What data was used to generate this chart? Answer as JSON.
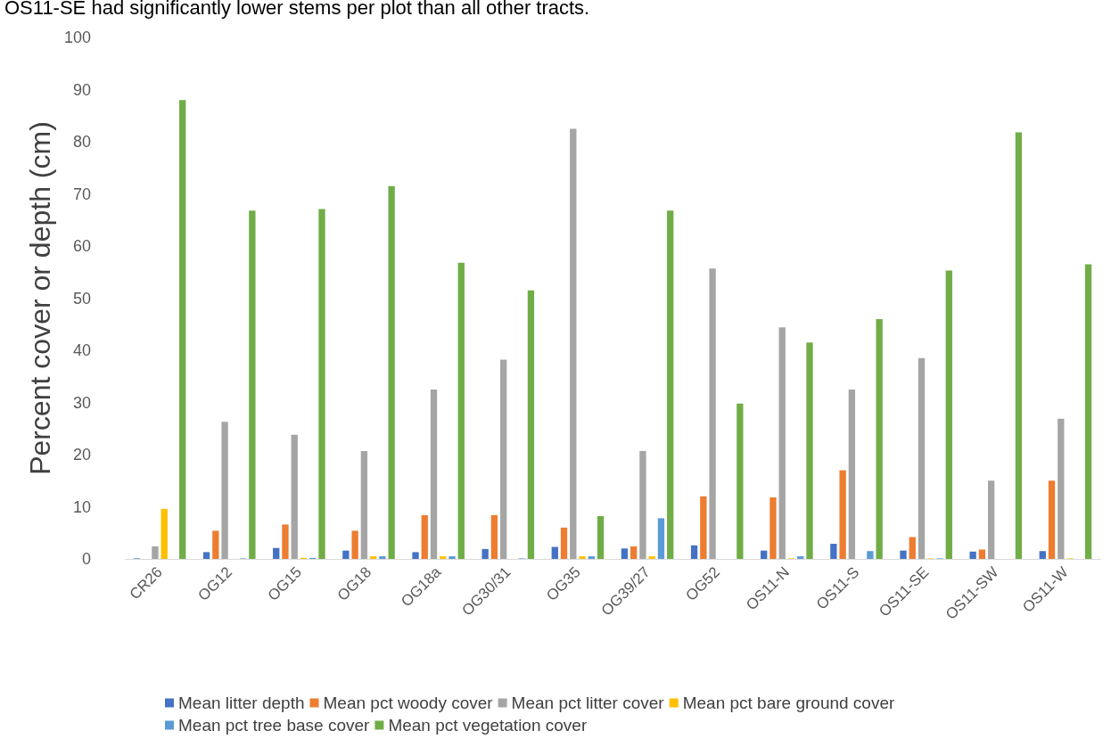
{
  "chart_data": {
    "type": "bar",
    "ylabel": "Percent cover or depth (cm)",
    "annotations": [
      "OS11-SE had significantly lower stems per plot than all other tracts."
    ],
    "categories": [
      "CR26",
      "OG12",
      "OG15",
      "OG18",
      "OG18a",
      "OG30/31",
      "OG35",
      "OG39/27",
      "OG52",
      "OS11-N",
      "OS11-S",
      "OS11-SE",
      "OS11-SW",
      "OS11-W"
    ],
    "series": [
      {
        "name": "Mean litter depth",
        "color": "#4472c4",
        "values": [
          0.1,
          1.3,
          2.1,
          1.6,
          1.3,
          1.9,
          2.3,
          2.0,
          2.6,
          1.6,
          2.9,
          1.6,
          1.4,
          1.5
        ]
      },
      {
        "name": "Mean pct woody cover",
        "color": "#ed7d31",
        "values": [
          0,
          5.4,
          6.6,
          5.4,
          8.4,
          8.4,
          6.0,
          2.4,
          12.0,
          11.8,
          17.0,
          4.2,
          1.8,
          15.0
        ]
      },
      {
        "name": "Mean pct litter cover",
        "color": "#a5a5a5",
        "values": [
          2.4,
          26.3,
          23.8,
          20.7,
          32.5,
          38.2,
          82.5,
          20.7,
          55.7,
          44.4,
          32.5,
          38.5,
          15.0,
          26.9
        ]
      },
      {
        "name": "Mean pct bare ground cover",
        "color": "#ffc000",
        "values": [
          9.6,
          0,
          0.2,
          0.5,
          0.5,
          0,
          0.5,
          0.5,
          0,
          0.1,
          0,
          0.1,
          0,
          0.1
        ]
      },
      {
        "name": "Mean pct tree base cover",
        "color": "#5b9bd5",
        "values": [
          0,
          0.1,
          0.2,
          0.5,
          0.5,
          0.1,
          0.5,
          7.8,
          0,
          0.5,
          1.5,
          0.1,
          0,
          0
        ]
      },
      {
        "name": "Mean pct vegetation cover",
        "color": "#70ad47",
        "values": [
          88,
          66.8,
          67.1,
          71.5,
          56.8,
          51.5,
          8.2,
          66.8,
          29.8,
          41.5,
          46.0,
          55.3,
          81.8,
          56.5
        ]
      }
    ],
    "ylim": [
      0,
      100
    ],
    "yticks": [
      0,
      10,
      20,
      30,
      40,
      50,
      60,
      70,
      80,
      90,
      100
    ],
    "grid": false,
    "legend": "bottom"
  }
}
